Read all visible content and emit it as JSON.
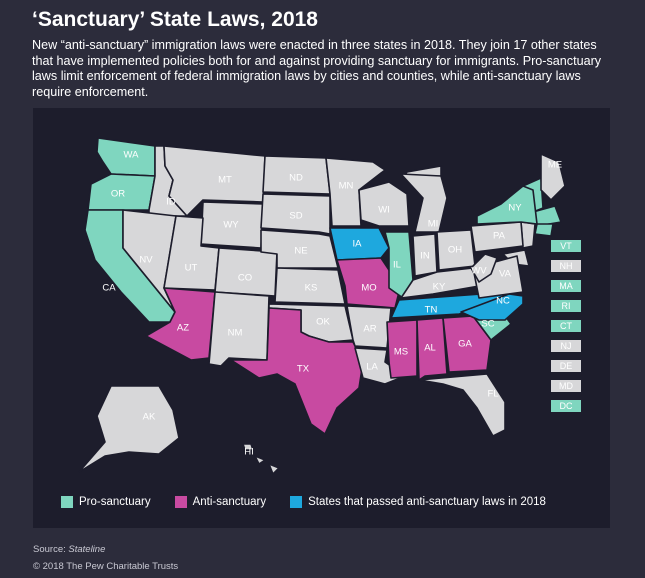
{
  "title": "‘Sanctuary’ State Laws, 2018",
  "subtitle": "New “anti-sanctuary” immigration laws were enacted in three states in 2018. They join 17 other states that have implemented policies both for and against providing sanctuary for immigrants. Pro-sanctuary laws limit enforcement of federal immigration laws by cities and counties, while anti-sanctuary laws require enforcement.",
  "colors": {
    "pro": "#7fd6bf",
    "anti": "#c84aa1",
    "passed_2018": "#1ea8de",
    "none": "#d7d7d9",
    "background": "#2c2c3b",
    "panel": "#1d1d2c"
  },
  "states": [
    {
      "abbr": "WA",
      "status": "pro"
    },
    {
      "abbr": "OR",
      "status": "pro"
    },
    {
      "abbr": "CA",
      "status": "pro"
    },
    {
      "abbr": "ID",
      "status": "none"
    },
    {
      "abbr": "NV",
      "status": "none"
    },
    {
      "abbr": "MT",
      "status": "none"
    },
    {
      "abbr": "WY",
      "status": "none"
    },
    {
      "abbr": "UT",
      "status": "none"
    },
    {
      "abbr": "CO",
      "status": "none"
    },
    {
      "abbr": "AZ",
      "status": "anti"
    },
    {
      "abbr": "NM",
      "status": "none"
    },
    {
      "abbr": "ND",
      "status": "none"
    },
    {
      "abbr": "SD",
      "status": "none"
    },
    {
      "abbr": "NE",
      "status": "none"
    },
    {
      "abbr": "KS",
      "status": "none"
    },
    {
      "abbr": "OK",
      "status": "none"
    },
    {
      "abbr": "TX",
      "status": "anti"
    },
    {
      "abbr": "MN",
      "status": "none"
    },
    {
      "abbr": "IA",
      "status": "passed_2018"
    },
    {
      "abbr": "MO",
      "status": "anti"
    },
    {
      "abbr": "AR",
      "status": "none"
    },
    {
      "abbr": "LA",
      "status": "none"
    },
    {
      "abbr": "WI",
      "status": "none"
    },
    {
      "abbr": "IL",
      "status": "pro"
    },
    {
      "abbr": "MI",
      "status": "none"
    },
    {
      "abbr": "IN",
      "status": "none"
    },
    {
      "abbr": "OH",
      "status": "none"
    },
    {
      "abbr": "KY",
      "status": "none"
    },
    {
      "abbr": "TN",
      "status": "passed_2018"
    },
    {
      "abbr": "MS",
      "status": "anti"
    },
    {
      "abbr": "AL",
      "status": "anti"
    },
    {
      "abbr": "GA",
      "status": "anti"
    },
    {
      "abbr": "FL",
      "status": "none"
    },
    {
      "abbr": "SC",
      "status": "pro"
    },
    {
      "abbr": "NC",
      "status": "passed_2018"
    },
    {
      "abbr": "VA",
      "status": "none"
    },
    {
      "abbr": "WV",
      "status": "none"
    },
    {
      "abbr": "PA",
      "status": "none"
    },
    {
      "abbr": "NY",
      "status": "pro"
    },
    {
      "abbr": "ME",
      "status": "none"
    },
    {
      "abbr": "AK",
      "status": "none"
    },
    {
      "abbr": "HI",
      "status": "none"
    }
  ],
  "small_states": [
    {
      "abbr": "VT",
      "status": "pro"
    },
    {
      "abbr": "NH",
      "status": "none"
    },
    {
      "abbr": "MA",
      "status": "pro"
    },
    {
      "abbr": "RI",
      "status": "pro"
    },
    {
      "abbr": "CT",
      "status": "pro"
    },
    {
      "abbr": "NJ",
      "status": "none"
    },
    {
      "abbr": "DE",
      "status": "none"
    },
    {
      "abbr": "MD",
      "status": "none"
    },
    {
      "abbr": "DC",
      "status": "pro"
    }
  ],
  "legend": {
    "pro": "Pro-sanctuary",
    "anti": "Anti-sanctuary",
    "passed_2018": "States that passed anti-sanctuary laws in 2018"
  },
  "source_label": "Source: ",
  "source_name": "Stateline",
  "copyright": "© 2018 The Pew Charitable Trusts"
}
